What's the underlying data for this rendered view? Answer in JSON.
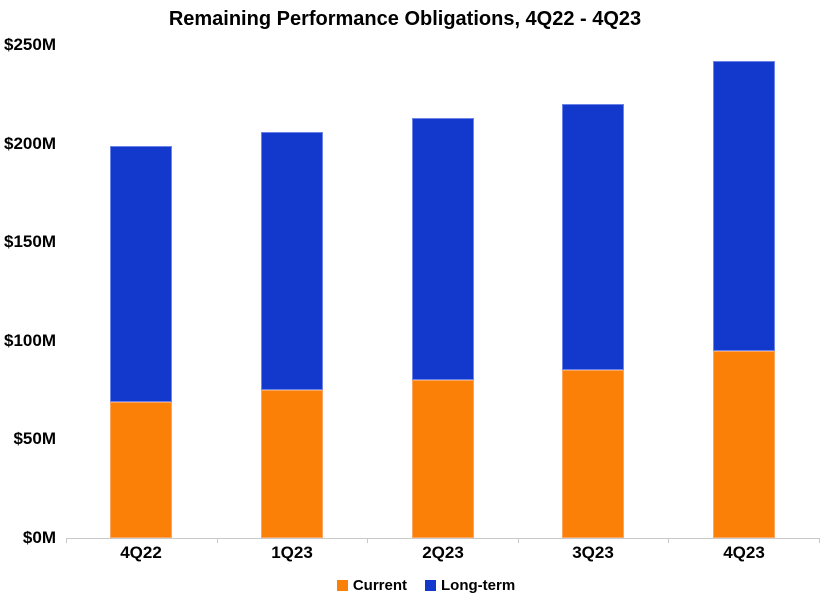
{
  "chart_data": {
    "type": "bar",
    "stacked": true,
    "title": "Remaining Performance Obligations, 4Q22 - 4Q23",
    "categories": [
      "4Q22",
      "1Q23",
      "2Q23",
      "3Q23",
      "4Q23"
    ],
    "series": [
      {
        "name": "Current",
        "color": "#FB8008",
        "border_color": "#FDA55C",
        "values": [
          69,
          75,
          80,
          85,
          95
        ]
      },
      {
        "name": "Long-term",
        "color": "#1238CC",
        "border_color": "#6C84E8",
        "values": [
          130,
          131,
          133,
          135,
          147
        ]
      }
    ],
    "totals": [
      199,
      206,
      213,
      220,
      242
    ],
    "xlabel": "",
    "ylabel": "",
    "ylim": [
      0,
      250
    ],
    "yticks": [
      {
        "value": 0,
        "label": "$0M"
      },
      {
        "value": 50,
        "label": "$50M"
      },
      {
        "value": 100,
        "label": "$100M"
      },
      {
        "value": 150,
        "label": "$150M"
      },
      {
        "value": 200,
        "label": "$200M"
      },
      {
        "value": 250,
        "label": "$250M"
      }
    ],
    "grid": false,
    "legend_position": "bottom"
  }
}
